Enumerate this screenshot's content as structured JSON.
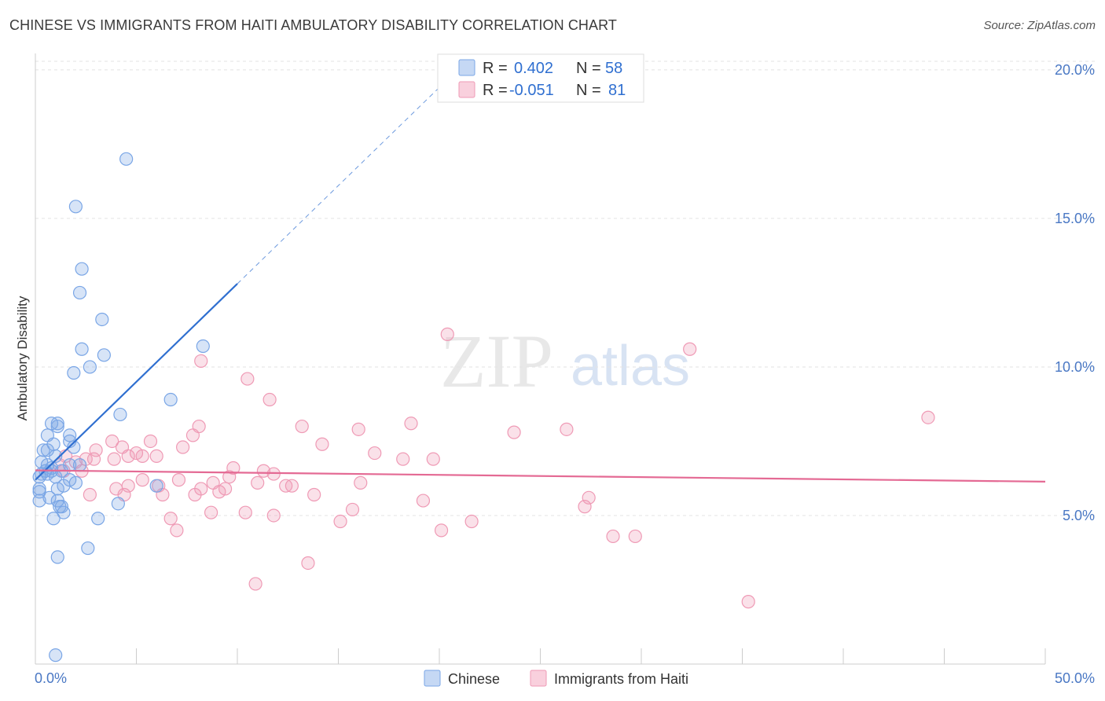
{
  "title": "CHINESE VS IMMIGRANTS FROM HAITI AMBULATORY DISABILITY CORRELATION CHART",
  "source": "Source: ZipAtlas.com",
  "watermark": {
    "zip": "ZIP",
    "atlas": "atlas"
  },
  "legend": {
    "r_label": "R =",
    "n_label": "N =",
    "series": [
      {
        "name": "Chinese",
        "r": "0.402",
        "n": "58",
        "color": "#7aa6e6"
      },
      {
        "name": "Immigrants from Haiti",
        "r": "-0.051",
        "n": "81",
        "color": "#ef9ab5"
      }
    ]
  },
  "chart_data": {
    "type": "scatter",
    "title": "CHINESE VS IMMIGRANTS FROM HAITI AMBULATORY DISABILITY CORRELATION CHART",
    "xlabel": "",
    "ylabel": "Ambulatory Disability",
    "xlim": [
      0,
      50
    ],
    "ylim": [
      0,
      20.5
    ],
    "x_tick_labels": [
      "0.0%",
      "50.0%"
    ],
    "y_ticks": [
      5,
      10,
      15,
      20
    ],
    "y_tick_labels": [
      "5.0%",
      "10.0%",
      "15.0%",
      "20.0%"
    ],
    "grid": true,
    "series": [
      {
        "name": "Chinese",
        "color": "#7aa6e6",
        "line_color": "#2f6fd0",
        "trend": {
          "x0": 0,
          "y0": 6.2,
          "x1": 10,
          "y1": 12.8,
          "dashed_to_x": 21.5,
          "dashed_to_y": 20.4
        },
        "points": [
          [
            4.5,
            17.0
          ],
          [
            2.0,
            15.4
          ],
          [
            2.3,
            13.3
          ],
          [
            2.2,
            12.5
          ],
          [
            3.3,
            11.6
          ],
          [
            8.3,
            10.7
          ],
          [
            2.3,
            10.6
          ],
          [
            3.4,
            10.4
          ],
          [
            2.7,
            10.0
          ],
          [
            1.9,
            9.8
          ],
          [
            6.7,
            8.9
          ],
          [
            4.2,
            8.4
          ],
          [
            0.8,
            8.1
          ],
          [
            1.1,
            8.1
          ],
          [
            1.1,
            8.0
          ],
          [
            0.6,
            7.7
          ],
          [
            1.7,
            7.7
          ],
          [
            0.9,
            7.4
          ],
          [
            1.7,
            7.5
          ],
          [
            1.9,
            7.3
          ],
          [
            0.4,
            7.2
          ],
          [
            0.6,
            7.2
          ],
          [
            1.0,
            7.0
          ],
          [
            0.3,
            6.8
          ],
          [
            0.6,
            6.7
          ],
          [
            0.8,
            6.6
          ],
          [
            1.7,
            6.7
          ],
          [
            2.2,
            6.7
          ],
          [
            0.5,
            6.5
          ],
          [
            0.8,
            6.5
          ],
          [
            1.3,
            6.5
          ],
          [
            0.3,
            6.4
          ],
          [
            0.6,
            6.4
          ],
          [
            0.2,
            6.3
          ],
          [
            1.0,
            6.3
          ],
          [
            1.7,
            6.2
          ],
          [
            2.0,
            6.1
          ],
          [
            1.4,
            6.0
          ],
          [
            6.0,
            6.0
          ],
          [
            0.2,
            5.9
          ],
          [
            1.1,
            5.9
          ],
          [
            0.2,
            5.8
          ],
          [
            0.7,
            5.6
          ],
          [
            1.1,
            5.5
          ],
          [
            0.2,
            5.5
          ],
          [
            4.1,
            5.4
          ],
          [
            1.3,
            5.3
          ],
          [
            1.2,
            5.3
          ],
          [
            1.4,
            5.1
          ],
          [
            0.9,
            4.9
          ],
          [
            3.1,
            4.9
          ],
          [
            2.6,
            3.9
          ],
          [
            1.1,
            3.6
          ],
          [
            1.0,
            0.3
          ]
        ]
      },
      {
        "name": "Immigrants from Haiti",
        "color": "#ef9ab5",
        "line_color": "#e46a94",
        "trend": {
          "x0": 0,
          "y0": 6.52,
          "x1": 50,
          "y1": 6.14
        },
        "points": [
          [
            20.4,
            11.1
          ],
          [
            32.4,
            10.6
          ],
          [
            8.2,
            10.2
          ],
          [
            10.5,
            9.6
          ],
          [
            11.6,
            8.9
          ],
          [
            44.2,
            8.3
          ],
          [
            8.1,
            8.0
          ],
          [
            13.2,
            8.0
          ],
          [
            18.6,
            8.1
          ],
          [
            16.0,
            7.9
          ],
          [
            23.7,
            7.8
          ],
          [
            26.3,
            7.9
          ],
          [
            7.8,
            7.7
          ],
          [
            3.8,
            7.5
          ],
          [
            5.7,
            7.5
          ],
          [
            14.2,
            7.4
          ],
          [
            4.3,
            7.3
          ],
          [
            7.3,
            7.3
          ],
          [
            3.0,
            7.2
          ],
          [
            5.0,
            7.1
          ],
          [
            16.8,
            7.1
          ],
          [
            1.5,
            7.0
          ],
          [
            5.3,
            7.0
          ],
          [
            6.0,
            7.0
          ],
          [
            2.9,
            6.9
          ],
          [
            4.6,
            7.0
          ],
          [
            2.5,
            6.9
          ],
          [
            3.9,
            6.9
          ],
          [
            18.2,
            6.9
          ],
          [
            19.7,
            6.9
          ],
          [
            2.0,
            6.8
          ],
          [
            1.2,
            6.7
          ],
          [
            9.8,
            6.6
          ],
          [
            1.4,
            6.5
          ],
          [
            2.3,
            6.5
          ],
          [
            11.3,
            6.5
          ],
          [
            11.8,
            6.4
          ],
          [
            9.6,
            6.3
          ],
          [
            5.3,
            6.2
          ],
          [
            7.1,
            6.2
          ],
          [
            11.0,
            6.1
          ],
          [
            8.8,
            6.1
          ],
          [
            16.1,
            6.1
          ],
          [
            4.6,
            6.0
          ],
          [
            6.1,
            6.0
          ],
          [
            12.4,
            6.0
          ],
          [
            12.7,
            6.0
          ],
          [
            4.0,
            5.9
          ],
          [
            8.2,
            5.9
          ],
          [
            9.4,
            5.9
          ],
          [
            9.1,
            5.8
          ],
          [
            2.7,
            5.7
          ],
          [
            4.4,
            5.7
          ],
          [
            6.3,
            5.7
          ],
          [
            7.9,
            5.7
          ],
          [
            13.8,
            5.7
          ],
          [
            27.4,
            5.6
          ],
          [
            19.2,
            5.5
          ],
          [
            27.2,
            5.3
          ],
          [
            15.7,
            5.2
          ],
          [
            8.7,
            5.1
          ],
          [
            10.4,
            5.1
          ],
          [
            11.8,
            5.0
          ],
          [
            6.7,
            4.9
          ],
          [
            15.1,
            4.8
          ],
          [
            21.6,
            4.8
          ],
          [
            7.0,
            4.5
          ],
          [
            20.1,
            4.5
          ],
          [
            28.6,
            4.3
          ],
          [
            29.7,
            4.3
          ],
          [
            13.5,
            3.4
          ],
          [
            10.9,
            2.7
          ],
          [
            35.3,
            2.1
          ]
        ]
      }
    ]
  }
}
